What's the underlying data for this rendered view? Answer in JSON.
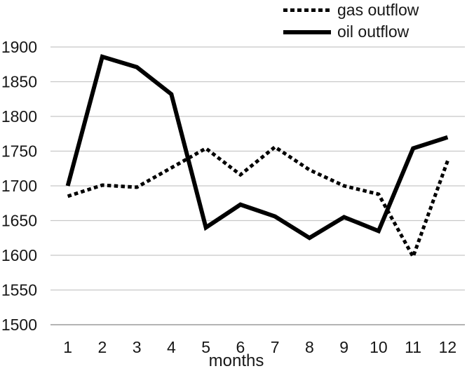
{
  "chart_data": {
    "type": "line",
    "title": "",
    "xlabel": "months",
    "ylabel": "",
    "categories": [
      "1",
      "2",
      "3",
      "4",
      "5",
      "6",
      "7",
      "8",
      "9",
      "10",
      "11",
      "12"
    ],
    "ylim": [
      1500,
      1900
    ],
    "ytick_step": 50,
    "grid": true,
    "legend_position": "top-right",
    "series": [
      {
        "name": "gas outflow",
        "style": "dotted",
        "color": "#000000",
        "values": [
          1685,
          1701,
          1698,
          1726,
          1754,
          1716,
          1756,
          1723,
          1700,
          1688,
          1598,
          1736
        ]
      },
      {
        "name": "oil outflow",
        "style": "solid",
        "color": "#000000",
        "values": [
          1700,
          1886,
          1871,
          1832,
          1640,
          1673,
          1656,
          1625,
          1655,
          1635,
          1754,
          1770
        ]
      }
    ],
    "colors": {
      "grid": "#c8c8c8",
      "axis": "#9c9c9c",
      "text": "#171717"
    }
  }
}
